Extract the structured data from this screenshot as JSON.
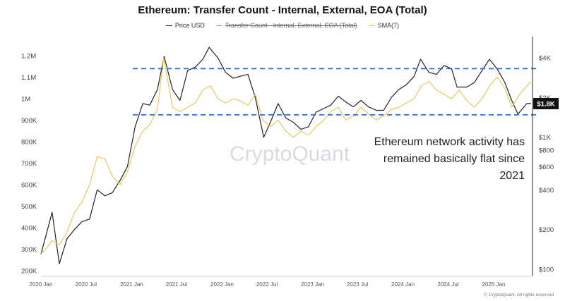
{
  "chart_data": {
    "type": "line",
    "title": "Ethereum: Transfer Count - Internal, External, EOA (Total)",
    "legend": [
      {
        "name": "Price USD",
        "color": "#222222",
        "hidden": false
      },
      {
        "name": "Transfer Count - Internal, External, EOA (Total)",
        "color": "#888888",
        "hidden": true
      },
      {
        "name": "SMA(7)",
        "color": "#f2c24e",
        "hidden": false
      }
    ],
    "x_ticks": [
      "2020 Jan",
      "2020 Jul",
      "2021 Jan",
      "2021 Jul",
      "2022 Jan",
      "2022 Jul",
      "2023 Jan",
      "2023 Jul",
      "2024 Jan",
      "2024 Jul",
      "2025 Jan"
    ],
    "x_range": [
      "2020-01-01",
      "2025-06-01"
    ],
    "left_axis": {
      "ticks": [
        "1.2M",
        "1.1M",
        "1M",
        "900K",
        "800K",
        "700K",
        "600K",
        "500K",
        "400K",
        "300K",
        "200K"
      ],
      "ylim": [
        200000,
        1200000
      ]
    },
    "right_axis": {
      "scale": "log",
      "ticks": [
        "$4K",
        "$2K",
        "$1K",
        "$800",
        "$600",
        "$400",
        "$200",
        "$100"
      ],
      "ylim": [
        100,
        4000
      ]
    },
    "reference_lines": [
      {
        "axis": "left",
        "value": 1140000,
        "color": "#2f6fe0",
        "style": "dashed"
      },
      {
        "axis": "left",
        "value": 925000,
        "color": "#2f6fe0",
        "style": "dashed"
      }
    ],
    "series": [
      {
        "name": "Price USD",
        "axis": "right",
        "color": "#222222",
        "points": [
          [
            "2020-01-01",
            130
          ],
          [
            "2020-02-15",
            270
          ],
          [
            "2020-03-15",
            110
          ],
          [
            "2020-04-15",
            170
          ],
          [
            "2020-05-15",
            200
          ],
          [
            "2020-06-15",
            230
          ],
          [
            "2020-07-15",
            240
          ],
          [
            "2020-08-15",
            400
          ],
          [
            "2020-09-15",
            360
          ],
          [
            "2020-10-15",
            380
          ],
          [
            "2020-11-15",
            470
          ],
          [
            "2020-12-15",
            600
          ],
          [
            "2021-01-15",
            1200
          ],
          [
            "2021-02-15",
            1800
          ],
          [
            "2021-03-15",
            1750
          ],
          [
            "2021-04-15",
            2300
          ],
          [
            "2021-05-12",
            4100
          ],
          [
            "2021-06-15",
            2300
          ],
          [
            "2021-07-15",
            1900
          ],
          [
            "2021-08-15",
            3200
          ],
          [
            "2021-09-15",
            3400
          ],
          [
            "2021-10-15",
            3900
          ],
          [
            "2021-11-10",
            4800
          ],
          [
            "2021-12-15",
            4000
          ],
          [
            "2022-01-15",
            3100
          ],
          [
            "2022-02-15",
            2800
          ],
          [
            "2022-03-15",
            2900
          ],
          [
            "2022-04-15",
            3000
          ],
          [
            "2022-05-15",
            2000
          ],
          [
            "2022-06-18",
            1000
          ],
          [
            "2022-07-15",
            1300
          ],
          [
            "2022-08-15",
            1800
          ],
          [
            "2022-09-15",
            1400
          ],
          [
            "2022-10-15",
            1300
          ],
          [
            "2022-11-15",
            1150
          ],
          [
            "2022-12-15",
            1200
          ],
          [
            "2023-01-15",
            1550
          ],
          [
            "2023-02-15",
            1650
          ],
          [
            "2023-03-15",
            1750
          ],
          [
            "2023-04-15",
            2050
          ],
          [
            "2023-05-15",
            1850
          ],
          [
            "2023-06-15",
            1700
          ],
          [
            "2023-07-15",
            1900
          ],
          [
            "2023-08-15",
            1700
          ],
          [
            "2023-09-15",
            1600
          ],
          [
            "2023-10-15",
            1600
          ],
          [
            "2023-11-15",
            2000
          ],
          [
            "2023-12-15",
            2300
          ],
          [
            "2024-01-15",
            2500
          ],
          [
            "2024-02-15",
            2900
          ],
          [
            "2024-03-12",
            3900
          ],
          [
            "2024-04-15",
            3100
          ],
          [
            "2024-05-15",
            3000
          ],
          [
            "2024-06-15",
            3500
          ],
          [
            "2024-07-15",
            3300
          ],
          [
            "2024-08-06",
            2400
          ],
          [
            "2024-09-15",
            2400
          ],
          [
            "2024-10-15",
            2600
          ],
          [
            "2024-11-15",
            3200
          ],
          [
            "2024-12-15",
            3900
          ],
          [
            "2025-01-15",
            3300
          ],
          [
            "2025-02-15",
            2600
          ],
          [
            "2025-03-15",
            1900
          ],
          [
            "2025-04-09",
            1500
          ],
          [
            "2025-05-15",
            1800
          ],
          [
            "2025-06-01",
            1800
          ]
        ]
      },
      {
        "name": "SMA(7)",
        "axis": "left",
        "color": "#f2c24e",
        "points": [
          [
            "2020-01-01",
            280000
          ],
          [
            "2020-01-20",
            300000
          ],
          [
            "2020-02-15",
            340000
          ],
          [
            "2020-03-15",
            320000
          ],
          [
            "2020-04-15",
            380000
          ],
          [
            "2020-05-15",
            470000
          ],
          [
            "2020-06-15",
            520000
          ],
          [
            "2020-07-15",
            600000
          ],
          [
            "2020-08-15",
            730000
          ],
          [
            "2020-09-15",
            720000
          ],
          [
            "2020-10-15",
            640000
          ],
          [
            "2020-11-15",
            600000
          ],
          [
            "2020-12-15",
            660000
          ],
          [
            "2021-01-15",
            780000
          ],
          [
            "2021-02-15",
            850000
          ],
          [
            "2021-03-15",
            880000
          ],
          [
            "2021-04-15",
            950000
          ],
          [
            "2021-05-10",
            1190000
          ],
          [
            "2021-06-15",
            960000
          ],
          [
            "2021-07-15",
            940000
          ],
          [
            "2021-08-15",
            960000
          ],
          [
            "2021-09-15",
            980000
          ],
          [
            "2021-10-15",
            1040000
          ],
          [
            "2021-11-15",
            1060000
          ],
          [
            "2021-12-15",
            1000000
          ],
          [
            "2022-01-15",
            980000
          ],
          [
            "2022-02-15",
            1000000
          ],
          [
            "2022-03-15",
            990000
          ],
          [
            "2022-04-15",
            970000
          ],
          [
            "2022-05-15",
            1020000
          ],
          [
            "2022-06-15",
            900000
          ],
          [
            "2022-07-15",
            870000
          ],
          [
            "2022-08-15",
            900000
          ],
          [
            "2022-09-15",
            850000
          ],
          [
            "2022-10-15",
            820000
          ],
          [
            "2022-11-15",
            850000
          ],
          [
            "2022-12-15",
            830000
          ],
          [
            "2023-01-15",
            870000
          ],
          [
            "2023-02-15",
            900000
          ],
          [
            "2023-03-15",
            940000
          ],
          [
            "2023-04-15",
            960000
          ],
          [
            "2023-05-15",
            900000
          ],
          [
            "2023-06-15",
            920000
          ],
          [
            "2023-07-15",
            960000
          ],
          [
            "2023-08-15",
            930000
          ],
          [
            "2023-09-15",
            900000
          ],
          [
            "2023-10-15",
            920000
          ],
          [
            "2023-11-15",
            950000
          ],
          [
            "2023-12-15",
            960000
          ],
          [
            "2024-01-15",
            980000
          ],
          [
            "2024-02-15",
            1000000
          ],
          [
            "2024-03-15",
            1060000
          ],
          [
            "2024-04-15",
            1080000
          ],
          [
            "2024-05-15",
            1040000
          ],
          [
            "2024-06-15",
            1020000
          ],
          [
            "2024-07-15",
            1000000
          ],
          [
            "2024-08-15",
            1040000
          ],
          [
            "2024-09-15",
            990000
          ],
          [
            "2024-10-15",
            960000
          ],
          [
            "2024-11-15",
            1000000
          ],
          [
            "2024-12-15",
            1060000
          ],
          [
            "2025-01-15",
            1100000
          ],
          [
            "2025-02-15",
            1050000
          ],
          [
            "2025-03-15",
            960000
          ],
          [
            "2025-04-15",
            1020000
          ],
          [
            "2025-05-15",
            1060000
          ],
          [
            "2025-06-01",
            1080000
          ]
        ]
      }
    ],
    "current_price_label": "$1.8K",
    "annotation": [
      "Ethereum network activity has",
      "remained basically flat since",
      "2021"
    ],
    "watermark": "CryptoQuant",
    "copyright": "© CryptoQuant. All rights reserved"
  }
}
